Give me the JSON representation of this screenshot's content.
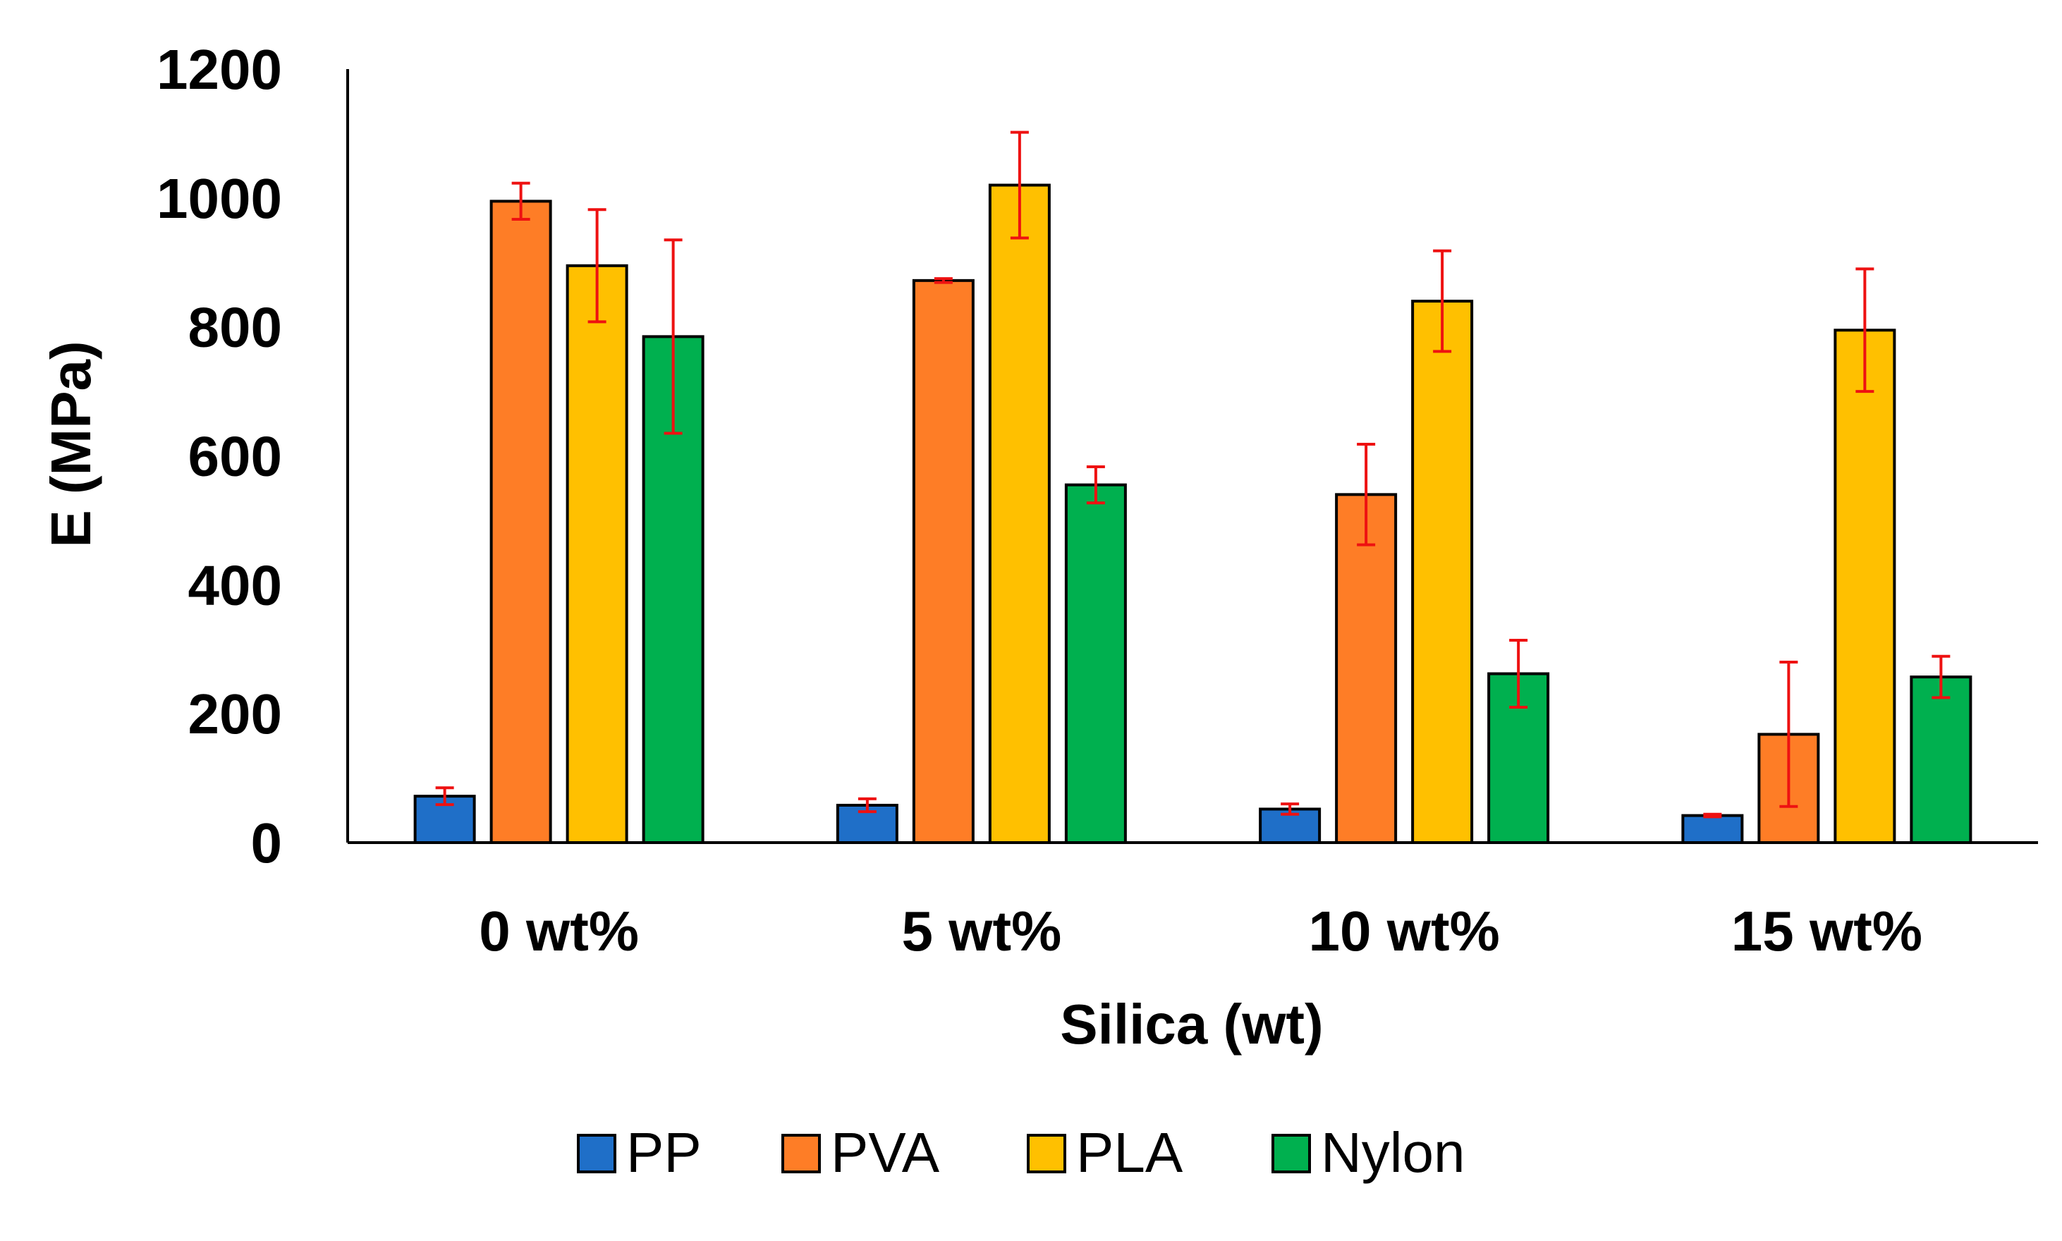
{
  "chart_data": {
    "type": "bar",
    "title": "",
    "xlabel": "Silica (wt)",
    "ylabel": "E (MPa)",
    "ylim": [
      0,
      1200
    ],
    "yticks": [
      0,
      200,
      400,
      600,
      800,
      1000,
      1200
    ],
    "ytick_labels": [
      "0",
      "200",
      "400",
      "600",
      "800",
      "1000",
      "1200"
    ],
    "categories": [
      "0 wt%",
      "5 wt%",
      "10 wt%",
      "15 wt%"
    ],
    "grid": false,
    "legend_position": "bottom",
    "series": [
      {
        "name": "PP",
        "color": "#1f6fc8",
        "values": [
          72,
          58,
          52,
          42
        ],
        "errors": [
          13,
          10,
          8,
          2
        ]
      },
      {
        "name": "PVA",
        "color": "#fe7d26",
        "values": [
          995,
          872,
          540,
          168
        ],
        "errors": [
          28,
          3,
          78,
          112
        ]
      },
      {
        "name": "PLA",
        "color": "#ffc000",
        "values": [
          895,
          1020,
          840,
          795
        ],
        "errors": [
          87,
          82,
          78,
          95
        ]
      },
      {
        "name": "Nylon",
        "color": "#00b04f",
        "values": [
          785,
          555,
          262,
          257
        ],
        "errors": [
          150,
          28,
          52,
          32
        ]
      }
    ],
    "error_bar_color": "#ee1111"
  }
}
